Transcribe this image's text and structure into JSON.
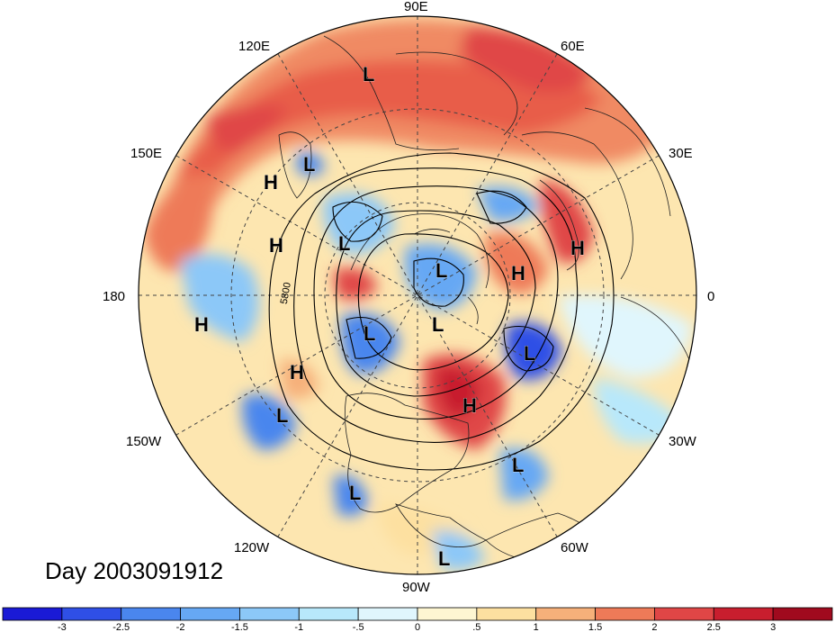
{
  "lon_labels": [
    {
      "text": "90E",
      "key": "90E"
    },
    {
      "text": "60E",
      "key": "60E"
    },
    {
      "text": "30E",
      "key": "30E"
    },
    {
      "text": "0",
      "key": "0"
    },
    {
      "text": "30W",
      "key": "30W"
    },
    {
      "text": "60W",
      "key": "60W"
    },
    {
      "text": "90W",
      "key": "90W"
    },
    {
      "text": "120W",
      "key": "120W"
    },
    {
      "text": "150W",
      "key": "150W"
    },
    {
      "text": "180",
      "key": "180"
    },
    {
      "text": "150E",
      "key": "150E"
    },
    {
      "text": "120E",
      "key": "120E"
    }
  ],
  "pressure_centers": [
    {
      "type": "L",
      "name": "low-siberia"
    },
    {
      "type": "L",
      "name": "low-east-siberia"
    },
    {
      "type": "H",
      "name": "high-kamchatka"
    },
    {
      "type": "H",
      "name": "high-bering"
    },
    {
      "type": "L",
      "name": "low-chukchi"
    },
    {
      "type": "L",
      "name": "low-arctic-1"
    },
    {
      "type": "L",
      "name": "low-arctic-2"
    },
    {
      "type": "L",
      "name": "low-alaska"
    },
    {
      "type": "H",
      "name": "high-north-pacific-west"
    },
    {
      "type": "H",
      "name": "high-gulf-alaska"
    },
    {
      "type": "L",
      "name": "low-north-pacific"
    },
    {
      "type": "H",
      "name": "high-scandinavia"
    },
    {
      "type": "H",
      "name": "high-europe"
    },
    {
      "type": "L",
      "name": "low-north-atlantic"
    },
    {
      "type": "H",
      "name": "high-us-east"
    },
    {
      "type": "L",
      "name": "low-central-atlantic"
    },
    {
      "type": "L",
      "name": "low-mexico"
    },
    {
      "type": "L",
      "name": "low-caribbean"
    }
  ],
  "contour_label": "5800",
  "date_text": "Day 2003091912",
  "colorbar": {
    "ticks": [
      "-3",
      "-2.5",
      "-2",
      "-1.5",
      "-1",
      "-.5",
      "0",
      ".5",
      "1",
      "1.5",
      "2",
      "2.5",
      "3"
    ],
    "colors": [
      "#1a1ad6",
      "#2f4fe6",
      "#4a86ee",
      "#66a8f4",
      "#8cc8f8",
      "#b8e8fb",
      "#e0f6fd",
      "#fef6d2",
      "#fde0a0",
      "#f6b07a",
      "#ee7a58",
      "#e04646",
      "#c81e2e",
      "#a00a1e"
    ]
  }
}
